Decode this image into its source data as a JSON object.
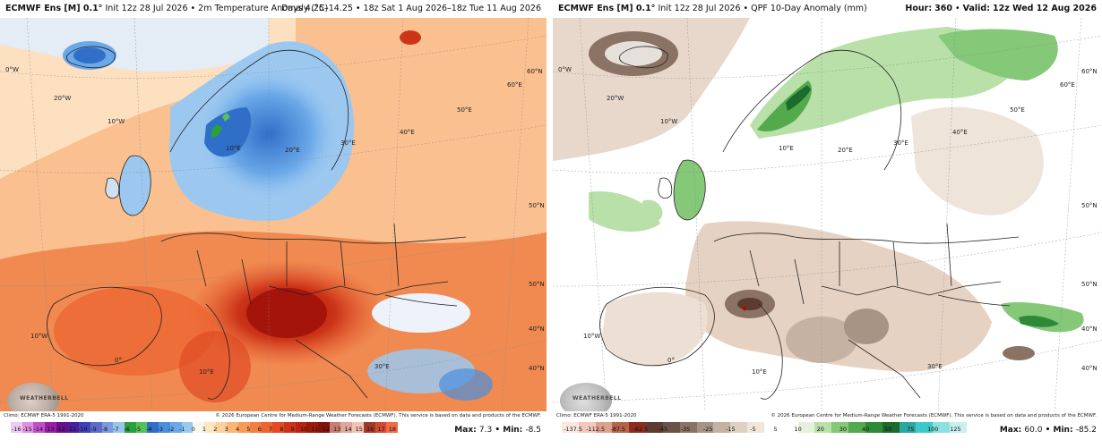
{
  "panels": [
    {
      "header_model": "ECMWF Ens [M] 0.1°",
      "header_desc": " Init 12z 28 Jul 2026 • 2m Temperature Anomaly (°C)",
      "header_right": "Days 4.25–14.25 • 18z Sat 1 Aug 2026–18z Tue 11 Aug 2026",
      "footer_left": "Climo: ECMWF ERA-5 1991-2020",
      "footer_right": "© 2026 European Centre for Medium-Range Weather Forecasts (ECMWF). This service is based on data and products of the ECMWF.",
      "max_label": "Max:",
      "max_value": "7.3",
      "min_label": "Min:",
      "min_value": "-8.5",
      "logo_text": "WEATHERBELL",
      "map_labels": [
        "0°W",
        "20°W",
        "10°W",
        "10°E",
        "20°E",
        "30°E",
        "40°E",
        "50°E",
        "60°E",
        "60°N",
        "50°N",
        "40°N",
        "10°W",
        "0°",
        "10°E",
        "30°E",
        "40°N",
        "50°N"
      ],
      "colorbar_ticks": [
        "-16",
        "-15",
        "-14",
        "-13",
        "-12",
        "-11",
        "-10",
        "-9",
        "-8",
        "-7",
        "-6",
        "-5",
        "-4",
        "-3",
        "-2",
        "-1",
        "0",
        "1",
        "2",
        "3",
        "4",
        "5",
        "6",
        "7",
        "8",
        "9",
        "10",
        "11",
        "12",
        "13",
        "14",
        "15",
        "16",
        "17",
        "18"
      ],
      "colorbar_colors": [
        "#f0c8f0",
        "#e090e0",
        "#c050c8",
        "#9a1ca8",
        "#6a0f8c",
        "#4a1f9c",
        "#4040b8",
        "#5d6ccc",
        "#7a9ade",
        "#9ac4ee",
        "#28a03c",
        "#58c058",
        "#2f6fc8",
        "#4c8edc",
        "#6aa8e8",
        "#9cc8f0",
        "#f8f8f0",
        "#fde6c0",
        "#fcd09a",
        "#fbb674",
        "#f89a58",
        "#f47e40",
        "#ec6430",
        "#e04a24",
        "#cc3418",
        "#b82410",
        "#9c1a0c",
        "#801408",
        "#c87e72",
        "#e0a89c",
        "#f0c4b6",
        "#a03828",
        "#d24830",
        "#f06a4a"
      ]
    },
    {
      "header_model": "ECMWF Ens [M] 0.1°",
      "header_desc": " Init 12z 28 Jul 2026 • QPF 10-Day Anomaly (mm)",
      "header_right_hour_label": "Hour:",
      "header_right_hour": "360",
      "header_right_valid_label": "Valid:",
      "header_right_valid": "12z Wed 12 Aug 2026",
      "footer_left": "Climo: ECMWF ERA-5 1991-2020",
      "footer_right": "© 2026 European Centre for Medium-Range Weather Forecasts (ECMWF). This service is based on data and products of the ECMWF.",
      "max_label": "Max:",
      "max_value": "60.0",
      "min_label": "Min:",
      "min_value": "-85.2",
      "logo_text": "WEATHERBELL",
      "map_labels": [
        "0°W",
        "20°W",
        "10°W",
        "10°E",
        "20°E",
        "30°E",
        "40°E",
        "50°E",
        "60°E",
        "60°N",
        "50°N",
        "40°N",
        "10°W",
        "0°",
        "10°E",
        "30°E",
        "40°N",
        "50°N"
      ],
      "colorbar_ticks": [
        "-137.5",
        "-112.5",
        "-87.5",
        "-62.5",
        "-45",
        "-35",
        "-25",
        "-15",
        "-5",
        "5",
        "10",
        "20",
        "30",
        "40",
        "50",
        "75",
        "100",
        "125"
      ],
      "colorbar_colors": [
        "#fbe6e0",
        "#f0c8bc",
        "#dca08c",
        "#b4644c",
        "#8c2e1c",
        "#5c3c30",
        "#6a5248",
        "#8a7264",
        "#a89484",
        "#c6b2a2",
        "#e0d0c2",
        "#f0e6dc",
        "#ffffff",
        "#ffffff",
        "#e4f2dc",
        "#b8e0a8",
        "#84c878",
        "#52aa4c",
        "#2e8a38",
        "#1c6a2c",
        "#2aa8a0",
        "#3ec8c8",
        "#8ce0e0",
        "#c8f0f0"
      ]
    }
  ]
}
